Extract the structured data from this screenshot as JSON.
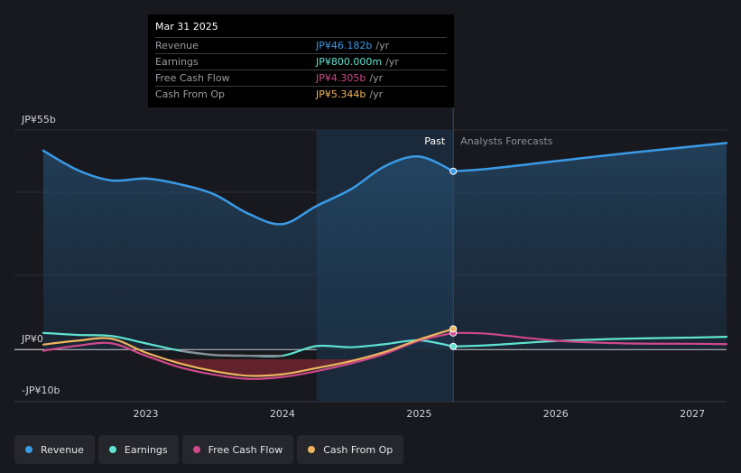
{
  "tooltip": {
    "date": "Mar 31 2025",
    "rows": [
      {
        "label": "Revenue",
        "value": "JP¥46.182b",
        "unit": "/yr",
        "color": "#3a9ae6"
      },
      {
        "label": "Earnings",
        "value": "JP¥800.000m",
        "unit": "/yr",
        "color": "#5fe3d2"
      },
      {
        "label": "Free Cash Flow",
        "value": "JP¥4.305b",
        "unit": "/yr",
        "color": "#d0488b"
      },
      {
        "label": "Cash From Op",
        "value": "JP¥5.344b",
        "unit": "/yr",
        "color": "#f0b45c"
      }
    ]
  },
  "legend": [
    {
      "label": "Revenue",
      "color": "#3a9ae6"
    },
    {
      "label": "Earnings",
      "color": "#5fe3d2"
    },
    {
      "label": "Free Cash Flow",
      "color": "#d0488b"
    },
    {
      "label": "Cash From Op",
      "color": "#f0b45c"
    }
  ],
  "chart_data": {
    "type": "line",
    "title": "",
    "xlabel": "",
    "ylabel": "",
    "y_unit": "JP¥ billions",
    "xlim": [
      2022.25,
      2027.25
    ],
    "ylim": [
      -10,
      55
    ],
    "y_tick_labels": [
      {
        "value": 55,
        "label": "JP¥55b"
      },
      {
        "value": 0,
        "label": "JP¥0"
      },
      {
        "value": -10,
        "label": "-JP¥10b"
      }
    ],
    "x_ticks": [
      {
        "value": 2023,
        "label": "2023"
      },
      {
        "value": 2024,
        "label": "2024"
      },
      {
        "value": 2025,
        "label": "2025"
      },
      {
        "value": 2026,
        "label": "2026"
      },
      {
        "value": 2027,
        "label": "2027"
      }
    ],
    "past_label": "Past",
    "forecast_label": "Analysts Forecasts",
    "past_end_x": 2025.25,
    "shaded_start_x": 2024.25,
    "series": [
      {
        "name": "Revenue",
        "color": "#3a9ae6",
        "fill": true,
        "past": [
          [
            2022.25,
            51.5
          ],
          [
            2022.5,
            46.5
          ],
          [
            2022.75,
            43.8
          ],
          [
            2023,
            44.3
          ],
          [
            2023.25,
            42.8
          ],
          [
            2023.5,
            40.2
          ],
          [
            2023.75,
            35.2
          ],
          [
            2024,
            32.5
          ],
          [
            2024.25,
            37.2
          ],
          [
            2024.5,
            41.5
          ],
          [
            2024.75,
            47.5
          ],
          [
            2025,
            50.0
          ],
          [
            2025.25,
            46.182
          ]
        ],
        "forecast": [
          [
            2025.25,
            46.182
          ],
          [
            2025.5,
            46.8
          ],
          [
            2026,
            48.8
          ],
          [
            2026.5,
            50.8
          ],
          [
            2027,
            52.6
          ],
          [
            2027.25,
            53.5
          ]
        ]
      },
      {
        "name": "Earnings",
        "color": "#5fe3d2",
        "past": [
          [
            2022.25,
            4.3
          ],
          [
            2022.5,
            3.8
          ],
          [
            2022.75,
            3.5
          ],
          [
            2023,
            1.6
          ],
          [
            2023.25,
            -0.3
          ],
          [
            2023.5,
            -1.4
          ],
          [
            2023.75,
            -1.6
          ],
          [
            2024,
            -1.6
          ],
          [
            2024.25,
            0.9
          ],
          [
            2024.5,
            0.6
          ],
          [
            2024.75,
            1.4
          ],
          [
            2025,
            2.4
          ],
          [
            2025.25,
            0.8
          ]
        ],
        "forecast": [
          [
            2025.25,
            0.8
          ],
          [
            2025.5,
            1.1
          ],
          [
            2026,
            2.2
          ],
          [
            2026.5,
            2.8
          ],
          [
            2027,
            3.1
          ],
          [
            2027.25,
            3.3
          ]
        ]
      },
      {
        "name": "Free Cash Flow",
        "color": "#d0488b",
        "past": [
          [
            2022.25,
            -0.3
          ],
          [
            2022.5,
            1.0
          ],
          [
            2022.75,
            1.6
          ],
          [
            2023,
            -1.6
          ],
          [
            2023.25,
            -4.6
          ],
          [
            2023.5,
            -6.5
          ],
          [
            2023.75,
            -7.6
          ],
          [
            2024,
            -7.1
          ],
          [
            2024.25,
            -5.6
          ],
          [
            2024.5,
            -3.6
          ],
          [
            2024.75,
            -1.1
          ],
          [
            2025,
            2.3
          ],
          [
            2025.25,
            4.305
          ]
        ],
        "forecast": [
          [
            2025.25,
            4.305
          ],
          [
            2025.5,
            4.1
          ],
          [
            2026,
            2.3
          ],
          [
            2026.5,
            1.6
          ],
          [
            2027,
            1.5
          ],
          [
            2027.25,
            1.4
          ]
        ]
      },
      {
        "name": "Cash From Op",
        "color": "#f0b45c",
        "past": [
          [
            2022.25,
            1.3
          ],
          [
            2022.5,
            2.3
          ],
          [
            2022.75,
            2.8
          ],
          [
            2023,
            -0.8
          ],
          [
            2023.25,
            -3.6
          ],
          [
            2023.5,
            -5.6
          ],
          [
            2023.75,
            -6.8
          ],
          [
            2024,
            -6.4
          ],
          [
            2024.25,
            -4.8
          ],
          [
            2024.5,
            -3.0
          ],
          [
            2024.75,
            -0.6
          ],
          [
            2025,
            2.6
          ],
          [
            2025.25,
            5.344
          ]
        ],
        "forecast": []
      }
    ]
  }
}
